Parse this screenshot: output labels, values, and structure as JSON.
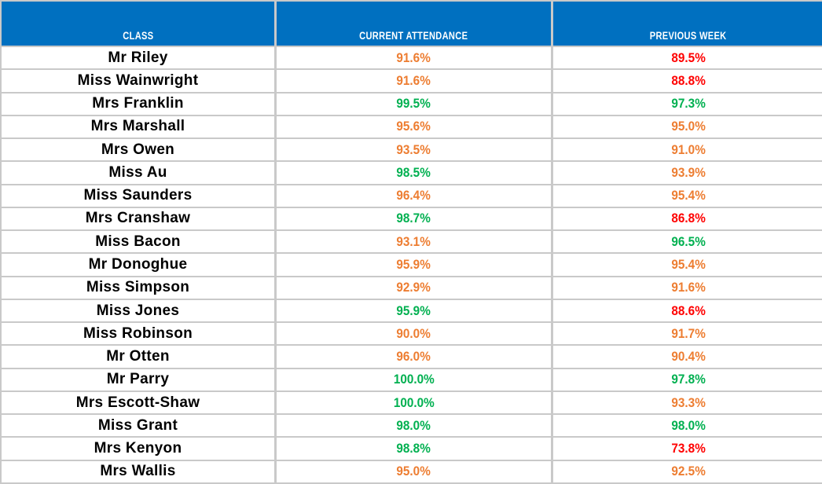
{
  "colors": {
    "header_bg": "#0070C0",
    "header_text": "#FFFFFF",
    "grid": "#C9C9C9",
    "name_text": "#000000",
    "green": "#00B050",
    "orange": "#ED7D31",
    "red": "#FF0000"
  },
  "table": {
    "columns": {
      "class_label": "CLASS",
      "current_label": "CURRENT ATTENDANCE",
      "previous_label": "PREVIOUS WEEK"
    },
    "rows": [
      {
        "class": "Mr Riley",
        "current": "91.6%",
        "current_status": "orange",
        "previous": "89.5%",
        "previous_status": "red"
      },
      {
        "class": "Miss Wainwright",
        "current": "91.6%",
        "current_status": "orange",
        "previous": "88.8%",
        "previous_status": "red"
      },
      {
        "class": "Mrs Franklin",
        "current": "99.5%",
        "current_status": "green",
        "previous": "97.3%",
        "previous_status": "green"
      },
      {
        "class": "Mrs Marshall",
        "current": "95.6%",
        "current_status": "orange",
        "previous": "95.0%",
        "previous_status": "orange"
      },
      {
        "class": "Mrs Owen",
        "current": "93.5%",
        "current_status": "orange",
        "previous": "91.0%",
        "previous_status": "orange"
      },
      {
        "class": "Miss Au",
        "current": "98.5%",
        "current_status": "green",
        "previous": "93.9%",
        "previous_status": "orange"
      },
      {
        "class": "Miss Saunders",
        "current": "96.4%",
        "current_status": "orange",
        "previous": "95.4%",
        "previous_status": "orange"
      },
      {
        "class": "Mrs Cranshaw",
        "current": "98.7%",
        "current_status": "green",
        "previous": "86.8%",
        "previous_status": "red"
      },
      {
        "class": "Miss Bacon",
        "current": "93.1%",
        "current_status": "orange",
        "previous": "96.5%",
        "previous_status": "green"
      },
      {
        "class": "Mr Donoghue",
        "current": "95.9%",
        "current_status": "orange",
        "previous": "95.4%",
        "previous_status": "orange"
      },
      {
        "class": "Miss Simpson",
        "current": "92.9%",
        "current_status": "orange",
        "previous": "91.6%",
        "previous_status": "orange"
      },
      {
        "class": "Miss Jones",
        "current": "95.9%",
        "current_status": "green",
        "previous": "88.6%",
        "previous_status": "red"
      },
      {
        "class": "Miss Robinson",
        "current": "90.0%",
        "current_status": "orange",
        "previous": "91.7%",
        "previous_status": "orange"
      },
      {
        "class": "Mr Otten",
        "current": "96.0%",
        "current_status": "orange",
        "previous": "90.4%",
        "previous_status": "orange"
      },
      {
        "class": "Mr Parry",
        "current": "100.0%",
        "current_status": "green",
        "previous": "97.8%",
        "previous_status": "green"
      },
      {
        "class": "Mrs Escott-Shaw",
        "current": "100.0%",
        "current_status": "green",
        "previous": "93.3%",
        "previous_status": "orange"
      },
      {
        "class": "Miss Grant",
        "current": "98.0%",
        "current_status": "green",
        "previous": "98.0%",
        "previous_status": "green"
      },
      {
        "class": "Mrs Kenyon",
        "current": "98.8%",
        "current_status": "green",
        "previous": "73.8%",
        "previous_status": "red"
      },
      {
        "class": "Mrs Wallis",
        "current": "95.0%",
        "current_status": "orange",
        "previous": "92.5%",
        "previous_status": "orange"
      }
    ]
  }
}
